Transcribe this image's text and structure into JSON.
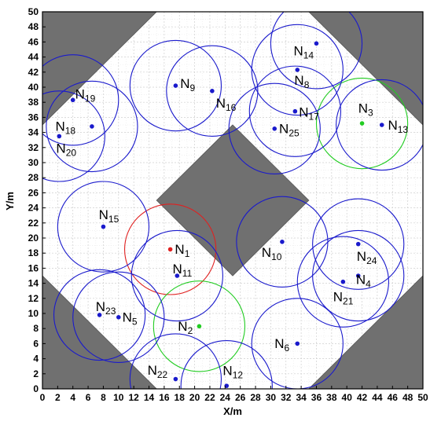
{
  "chart_data": {
    "type": "scatter",
    "title": "",
    "xlabel": "X/m",
    "ylabel": "Y/m",
    "xlim": [
      0,
      50
    ],
    "ylim": [
      0,
      50
    ],
    "x_ticks": [
      0,
      2,
      4,
      6,
      8,
      10,
      12,
      14,
      16,
      18,
      20,
      22,
      24,
      26,
      28,
      30,
      32,
      34,
      36,
      38,
      40,
      42,
      44,
      46,
      48,
      50
    ],
    "y_ticks": [
      0,
      2,
      4,
      6,
      8,
      10,
      12,
      14,
      16,
      18,
      20,
      22,
      24,
      26,
      28,
      30,
      32,
      34,
      36,
      38,
      40,
      42,
      44,
      46,
      48,
      50
    ],
    "grid": true,
    "colors": {
      "default": "#1a1acc",
      "highlight_red": "#e02020",
      "highlight_green": "#22cc22",
      "obstacle": "#707070",
      "grid": "#d9d9d9"
    },
    "obstacles": [
      {
        "name": "top-left-corner",
        "vertices": [
          [
            0,
            50
          ],
          [
            15,
            50
          ],
          [
            0,
            35
          ]
        ]
      },
      {
        "name": "top-right-corner",
        "vertices": [
          [
            35,
            50
          ],
          [
            50,
            50
          ],
          [
            50,
            35
          ]
        ]
      },
      {
        "name": "bottom-left-corner",
        "vertices": [
          [
            0,
            15
          ],
          [
            15,
            0
          ],
          [
            0,
            0
          ]
        ]
      },
      {
        "name": "bottom-right-corner",
        "vertices": [
          [
            35,
            0
          ],
          [
            50,
            0
          ],
          [
            50,
            15
          ]
        ]
      },
      {
        "name": "center-diamond",
        "vertices": [
          [
            25,
            35
          ],
          [
            35,
            25
          ],
          [
            25,
            15
          ],
          [
            15,
            25
          ]
        ]
      }
    ],
    "sensing_radius": 6,
    "nodes": [
      {
        "id": "1",
        "x": 16.8,
        "y": 18.5,
        "color": "highlight_red",
        "label_dx": 0.6,
        "label_dy": -0.6
      },
      {
        "id": "2",
        "x": 20.6,
        "y": 8.3,
        "color": "highlight_green",
        "label_dx": -2.8,
        "label_dy": -0.6
      },
      {
        "id": "3",
        "x": 42.0,
        "y": 35.2,
        "color": "highlight_green",
        "label_dx": -0.5,
        "label_dy": 1.4
      },
      {
        "id": "4",
        "x": 41.5,
        "y": 15.0,
        "color": "default",
        "label_dx": -0.3,
        "label_dy": -1.1
      },
      {
        "id": "5",
        "x": 10.0,
        "y": 9.5,
        "color": "default",
        "label_dx": 0.5,
        "label_dy": -0.6
      },
      {
        "id": "6",
        "x": 33.5,
        "y": 6.0,
        "color": "default",
        "label_dx": -3.0,
        "label_dy": -0.6
      },
      {
        "id": "8",
        "x": 33.5,
        "y": 42.3,
        "color": "default",
        "label_dx": -0.4,
        "label_dy": -2.0
      },
      {
        "id": "9",
        "x": 17.5,
        "y": 40.2,
        "color": "default",
        "label_dx": 0.6,
        "label_dy": -0.3
      },
      {
        "id": "10",
        "x": 31.5,
        "y": 19.5,
        "color": "default",
        "label_dx": -2.7,
        "label_dy": -2.0
      },
      {
        "id": "11",
        "x": 17.7,
        "y": 15.0,
        "color": "default",
        "label_dx": -0.6,
        "label_dy": 0.3
      },
      {
        "id": "12",
        "x": 24.2,
        "y": 0.4,
        "color": "default",
        "label_dx": -0.5,
        "label_dy": 1.4
      },
      {
        "id": "13",
        "x": 44.6,
        "y": 35.0,
        "color": "default",
        "label_dx": 0.8,
        "label_dy": -0.6
      },
      {
        "id": "14",
        "x": 36.0,
        "y": 45.8,
        "color": "default",
        "label_dx": -3.0,
        "label_dy": -1.6
      },
      {
        "id": "15",
        "x": 8.0,
        "y": 21.5,
        "color": "default",
        "label_dx": -0.6,
        "label_dy": 1.0
      },
      {
        "id": "16",
        "x": 22.3,
        "y": 39.5,
        "color": "default",
        "label_dx": 0.5,
        "label_dy": -2.2
      },
      {
        "id": "17",
        "x": 33.2,
        "y": 36.8,
        "color": "default",
        "label_dx": 0.5,
        "label_dy": -0.7
      },
      {
        "id": "18",
        "x": 6.5,
        "y": 34.8,
        "color": "default",
        "label_dx": -4.8,
        "label_dy": -0.6
      },
      {
        "id": "19",
        "x": 4.0,
        "y": 38.3,
        "color": "default",
        "label_dx": 0.3,
        "label_dy": 0.2
      },
      {
        "id": "20",
        "x": 2.2,
        "y": 33.5,
        "color": "default",
        "label_dx": -0.4,
        "label_dy": -2.2
      },
      {
        "id": "21",
        "x": 39.5,
        "y": 14.2,
        "color": "default",
        "label_dx": -1.3,
        "label_dy": -2.6
      },
      {
        "id": "22",
        "x": 17.5,
        "y": 1.3,
        "color": "default",
        "label_dx": -3.7,
        "label_dy": 0.6
      },
      {
        "id": "23",
        "x": 7.5,
        "y": 9.8,
        "color": "default",
        "label_dx": -0.5,
        "label_dy": 0.5
      },
      {
        "id": "24",
        "x": 41.5,
        "y": 19.2,
        "color": "default",
        "label_dx": -0.2,
        "label_dy": -2.2
      },
      {
        "id": "25",
        "x": 30.5,
        "y": 34.5,
        "color": "default",
        "label_dx": 0.6,
        "label_dy": -0.6
      }
    ],
    "label_prefix": "N"
  }
}
